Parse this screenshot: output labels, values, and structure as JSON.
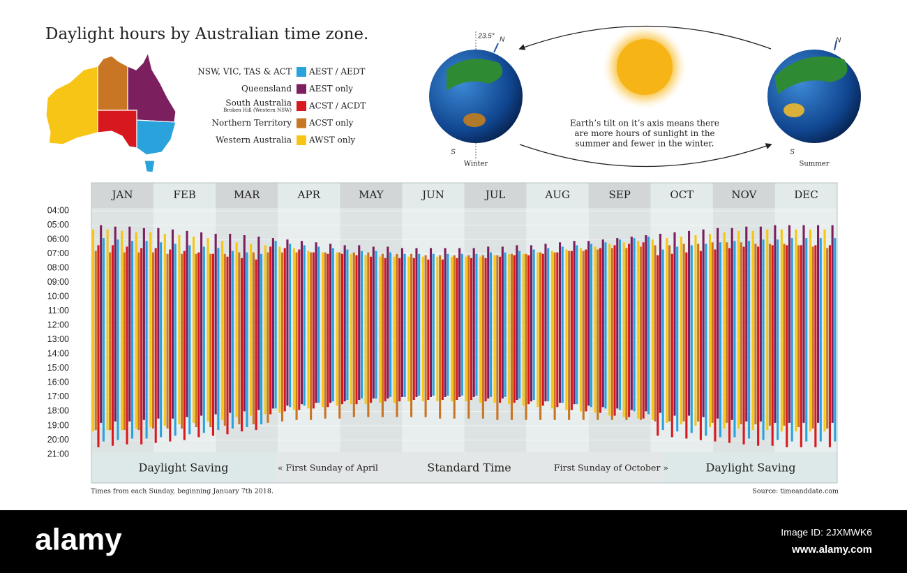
{
  "header": {
    "title": "Daylight hours by Australian time zone."
  },
  "illustration": {
    "caption_lines": [
      "Earth’s tilt on it’s axis means there",
      "are more hours of sunlight in the",
      "summer and fewer in the winter."
    ],
    "winter_label": "Winter",
    "summer_label": "Summer",
    "tilt_label": "23.5°",
    "north": "N",
    "south": "S"
  },
  "chart_data": {
    "type": "floating-bar",
    "categories": [
      "JAN",
      "FEB",
      "MAR",
      "APR",
      "MAY",
      "JUN",
      "JUL",
      "AUG",
      "SEP",
      "OCT",
      "NOV",
      "DEC"
    ],
    "ylim": [
      3.8,
      21
    ],
    "y_inverted": true,
    "grid": true,
    "yticks": [
      {
        "value": 4,
        "label": "04:00"
      },
      {
        "value": 5,
        "label": "05:00"
      },
      {
        "value": 6,
        "label": "06:00"
      },
      {
        "value": 7,
        "label": "07:00"
      },
      {
        "value": 8,
        "label": "08:00"
      },
      {
        "value": 9,
        "label": "09:00"
      },
      {
        "value": 10,
        "label": "10:00"
      },
      {
        "value": 11,
        "label": "11:00"
      },
      {
        "value": 12,
        "label": "12:00"
      },
      {
        "value": 13,
        "label": "13:00"
      },
      {
        "value": 14,
        "label": "14:00"
      },
      {
        "value": 15,
        "label": "15:00"
      },
      {
        "value": 16,
        "label": "16:00"
      },
      {
        "value": 17,
        "label": "17:00"
      },
      {
        "value": 18,
        "label": "18:00"
      },
      {
        "value": 19,
        "label": "19:00"
      },
      {
        "value": 20,
        "label": "20:00"
      },
      {
        "value": 21,
        "label": "21:00"
      }
    ],
    "series": [
      {
        "name": "AEST / AEDT",
        "region": "NSW, VIC, TAS & ACT",
        "color": "#2aa3dc",
        "start": [
          5.9,
          6.0,
          6.1,
          6.1,
          6.2,
          6.3,
          6.4,
          6.5,
          6.6,
          6.8,
          6.9,
          7.0,
          6.1,
          6.3,
          6.4,
          6.5,
          6.6,
          6.7,
          6.8,
          6.8,
          6.9,
          7.0,
          7.0,
          7.0,
          7.0,
          7.0,
          7.0,
          6.9,
          6.9,
          6.8,
          6.7,
          6.6,
          6.5,
          6.4,
          6.3,
          6.2,
          6.0,
          5.9,
          5.8,
          6.7,
          6.5,
          6.4,
          6.3,
          6.2,
          6.1,
          6.1,
          6.0,
          6.0,
          5.9,
          5.9,
          5.9,
          5.9
        ],
        "end": [
          20.1,
          20.0,
          19.9,
          19.9,
          19.8,
          19.7,
          19.6,
          19.5,
          19.3,
          19.2,
          19.1,
          18.9,
          17.8,
          17.7,
          17.6,
          17.4,
          17.3,
          17.2,
          17.1,
          17.1,
          17.0,
          17.0,
          16.9,
          16.9,
          16.9,
          16.9,
          16.9,
          17.0,
          17.0,
          17.1,
          17.2,
          17.3,
          17.4,
          17.5,
          17.7,
          17.8,
          17.9,
          18.0,
          18.2,
          19.3,
          19.4,
          19.5,
          19.7,
          19.8,
          19.8,
          19.9,
          20.0,
          20.0,
          20.1,
          20.1,
          20.1,
          20.1
        ]
      },
      {
        "name": "AEST only",
        "region": "Queensland",
        "color": "#7b1f5e",
        "start": [
          5.0,
          5.1,
          5.1,
          5.2,
          5.2,
          5.3,
          5.4,
          5.5,
          5.6,
          5.6,
          5.7,
          5.8,
          5.9,
          6.0,
          6.1,
          6.2,
          6.3,
          6.4,
          6.4,
          6.5,
          6.5,
          6.6,
          6.6,
          6.6,
          6.6,
          6.6,
          6.6,
          6.5,
          6.5,
          6.4,
          6.4,
          6.3,
          6.2,
          6.1,
          6.1,
          6.0,
          5.9,
          5.8,
          5.7,
          5.6,
          5.5,
          5.4,
          5.3,
          5.2,
          5.2,
          5.1,
          5.1,
          5.0,
          5.0,
          5.0,
          5.0,
          5.0
        ],
        "end": [
          18.8,
          18.7,
          18.7,
          18.6,
          18.5,
          18.5,
          18.4,
          18.3,
          18.2,
          18.1,
          18.0,
          17.9,
          17.8,
          17.6,
          17.5,
          17.4,
          17.4,
          17.3,
          17.2,
          17.1,
          17.1,
          17.0,
          17.0,
          17.0,
          17.0,
          17.0,
          17.0,
          17.1,
          17.1,
          17.2,
          17.3,
          17.3,
          17.4,
          17.5,
          17.6,
          17.7,
          17.8,
          17.9,
          18.0,
          18.1,
          18.3,
          18.3,
          18.4,
          18.5,
          18.6,
          18.7,
          18.7,
          18.8,
          18.8,
          18.8,
          18.8,
          18.8
        ]
      },
      {
        "name": "ACST / ACDT",
        "region": "South Australia",
        "region_note": "Broken Hill (Western NSW)",
        "color": "#d7191f",
        "start": [
          6.4,
          6.4,
          6.5,
          6.6,
          6.6,
          6.7,
          6.8,
          6.9,
          7.0,
          7.2,
          7.3,
          7.4,
          6.5,
          6.6,
          6.7,
          6.9,
          7.0,
          7.0,
          7.1,
          7.2,
          7.3,
          7.3,
          7.3,
          7.4,
          7.4,
          7.3,
          7.3,
          7.3,
          7.2,
          7.1,
          7.1,
          7.0,
          6.9,
          6.8,
          6.7,
          6.6,
          6.4,
          6.3,
          6.2,
          7.1,
          7.0,
          6.9,
          6.8,
          6.7,
          6.6,
          6.5,
          6.5,
          6.4,
          6.4,
          6.4,
          6.4,
          6.4
        ],
        "end": [
          20.5,
          20.4,
          20.3,
          20.3,
          20.2,
          20.1,
          20.0,
          19.8,
          19.7,
          19.6,
          19.4,
          19.3,
          18.2,
          18.0,
          17.9,
          17.8,
          17.7,
          17.5,
          17.5,
          17.4,
          17.3,
          17.3,
          17.2,
          17.2,
          17.2,
          17.2,
          17.2,
          17.3,
          17.4,
          17.4,
          17.5,
          17.6,
          17.7,
          17.9,
          18.0,
          18.1,
          18.3,
          18.4,
          18.5,
          19.7,
          19.8,
          19.9,
          20.0,
          20.1,
          20.2,
          20.3,
          20.4,
          20.4,
          20.5,
          20.5,
          20.5,
          20.5
        ]
      },
      {
        "name": "ACST only",
        "region": "Northern Territory",
        "color": "#c87524",
        "start": [
          6.8,
          6.9,
          6.9,
          6.9,
          6.9,
          7.0,
          7.0,
          7.0,
          7.0,
          7.0,
          6.9,
          6.9,
          6.9,
          6.9,
          6.9,
          6.9,
          6.9,
          6.9,
          6.9,
          6.9,
          7.0,
          7.0,
          7.0,
          7.1,
          7.1,
          7.1,
          7.1,
          7.1,
          7.1,
          7.0,
          7.0,
          6.9,
          6.9,
          6.8,
          6.8,
          6.7,
          6.6,
          6.6,
          6.5,
          6.4,
          6.4,
          6.3,
          6.3,
          6.2,
          6.2,
          6.2,
          6.3,
          6.3,
          6.3,
          6.4,
          6.5,
          6.6
        ],
        "end": [
          19.3,
          19.3,
          19.3,
          19.3,
          19.2,
          19.2,
          19.2,
          19.1,
          19.1,
          19.0,
          18.9,
          18.9,
          18.8,
          18.7,
          18.6,
          18.6,
          18.5,
          18.5,
          18.4,
          18.4,
          18.4,
          18.4,
          18.4,
          18.4,
          18.5,
          18.5,
          18.5,
          18.5,
          18.6,
          18.6,
          18.6,
          18.6,
          18.6,
          18.6,
          18.6,
          18.6,
          18.6,
          18.6,
          18.6,
          18.7,
          18.7,
          18.7,
          18.7,
          18.8,
          18.8,
          18.9,
          18.9,
          19.0,
          19.0,
          19.1,
          19.2,
          19.2
        ]
      },
      {
        "name": "AWST only",
        "region": "Western Australia",
        "color": "#f6c516",
        "start": [
          5.3,
          5.3,
          5.4,
          5.5,
          5.5,
          5.6,
          5.7,
          5.8,
          5.9,
          6.1,
          6.2,
          6.3,
          6.4,
          6.5,
          6.6,
          6.8,
          6.9,
          6.9,
          7.0,
          7.1,
          7.2,
          7.2,
          7.2,
          7.2,
          7.2,
          7.2,
          7.2,
          7.2,
          7.1,
          7.0,
          7.0,
          6.9,
          6.8,
          6.7,
          6.6,
          6.5,
          6.3,
          6.2,
          6.1,
          6.0,
          5.9,
          5.8,
          5.7,
          5.6,
          5.5,
          5.4,
          5.4,
          5.3,
          5.3,
          5.3,
          5.3,
          5.3
        ],
        "end": [
          19.4,
          19.3,
          19.3,
          19.2,
          19.1,
          19.0,
          18.9,
          18.8,
          18.7,
          18.6,
          18.4,
          18.3,
          18.2,
          18.1,
          17.9,
          17.8,
          17.7,
          17.6,
          17.5,
          17.5,
          17.4,
          17.4,
          17.3,
          17.3,
          17.3,
          17.3,
          17.3,
          17.4,
          17.4,
          17.5,
          17.6,
          17.7,
          17.8,
          17.9,
          18.0,
          18.1,
          18.3,
          18.4,
          18.5,
          18.6,
          18.8,
          18.9,
          19.0,
          19.1,
          19.2,
          19.2,
          19.3,
          19.3,
          19.4,
          19.4,
          19.4,
          19.4
        ]
      }
    ],
    "bands": [
      "Daylight Saving",
      "« First Sunday of April",
      "Standard Time",
      "First Sunday of October »",
      "Daylight Saving"
    ],
    "footnote": "Times from each Sunday, beginning January 7th 2018.",
    "source": "Source: timeanddate.com"
  },
  "watermark": {
    "brand": "alamy",
    "image_id": "Image ID: 2JXMWK6",
    "url": "www.alamy.com"
  }
}
